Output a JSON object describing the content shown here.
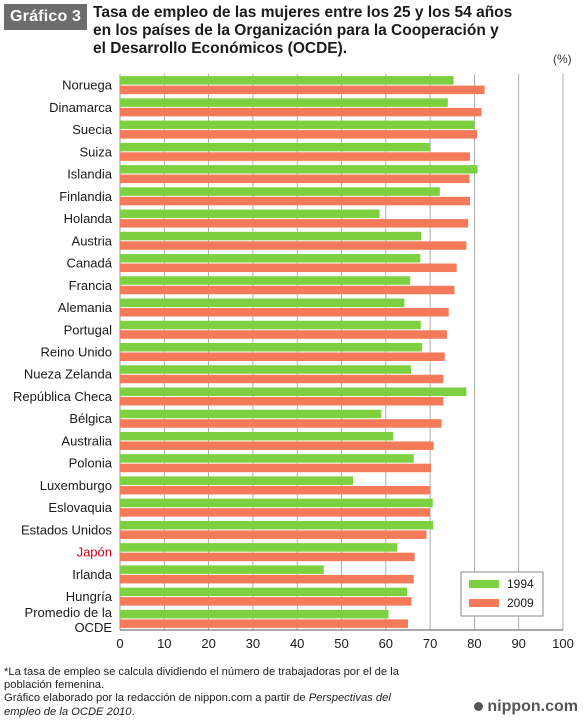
{
  "badge": "Gráfico 3",
  "title_lines": [
    "Tasa de empleo de las mujeres entre los 25 y los 54 años",
    "en los países de la Organización para la Cooperación y",
    "el Desarrollo Económicos (OCDE)."
  ],
  "unit": "(%)",
  "footnotes": {
    "line1": "*La tasa de empleo se calcula dividiendo el número de trabajadoras por el de la",
    "line2": "población femenina.",
    "line3_prefix": "Gráfico elaborado por la redacción de nippon.com a partir de ",
    "line3_italic": "Perspectivas del",
    "line4_italic": "empleo de la OCDE 2010",
    "line4_suffix": "."
  },
  "brand": "nippon.com",
  "colors": {
    "series_1994": "#7dd03f",
    "series_2009": "#f47a5a",
    "highlight_label": "#d9001b",
    "grid": "#9a9a9a"
  },
  "chart_data": {
    "type": "bar",
    "orientation": "horizontal",
    "categories": [
      "Noruega",
      "Dinamarca",
      "Suecia",
      "Suiza",
      "Islandia",
      "Finlandia",
      "Holanda",
      "Austria",
      "Canadá",
      "Francia",
      "Alemania",
      "Portugal",
      "Reino Unido",
      "Nueza Zelanda",
      "República Checa",
      "Bélgica",
      "Australia",
      "Polonia",
      "Luxemburgo",
      "Eslovaquia",
      "Estados Unidos",
      "Japón",
      "Irlanda",
      "Hungría",
      "Promedio de la OCDE"
    ],
    "highlight_category": "Japón",
    "series": [
      {
        "name": "1994",
        "values": [
          75.3,
          74.0,
          80.0,
          70.0,
          80.7,
          72.2,
          58.6,
          68.0,
          67.8,
          65.5,
          64.2,
          67.9,
          68.2,
          65.7,
          78.2,
          59.0,
          61.7,
          66.3,
          52.6,
          70.6,
          70.7,
          62.6,
          46.0,
          64.8,
          60.6
        ]
      },
      {
        "name": "2009",
        "values": [
          82.3,
          81.6,
          80.6,
          79.0,
          78.9,
          79.0,
          78.6,
          78.2,
          76.0,
          75.5,
          74.2,
          73.8,
          73.3,
          73.0,
          73.0,
          72.6,
          70.8,
          70.2,
          70.1,
          70.0,
          69.2,
          66.5,
          66.3,
          65.8,
          65.0
        ]
      }
    ],
    "xlim": [
      0,
      100
    ],
    "xticks": [
      "0",
      "10",
      "20",
      "30",
      "40",
      "50",
      "60",
      "70",
      "80",
      "90",
      "100"
    ],
    "grid": true,
    "legend": "bottom-right"
  }
}
